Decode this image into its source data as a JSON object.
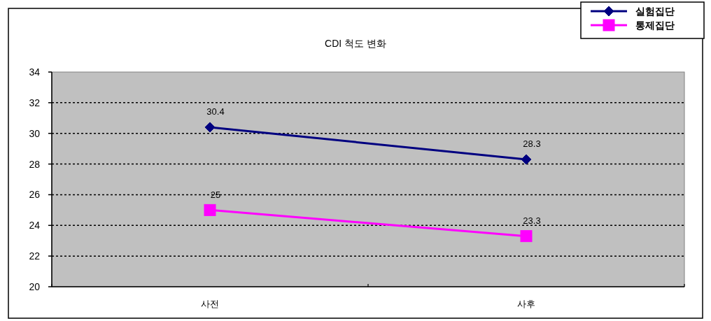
{
  "chart_data": {
    "type": "line",
    "title": "CDI 척도 변화",
    "categories": [
      "사전",
      "사후"
    ],
    "series": [
      {
        "name": "실험집단",
        "color": "#000080",
        "marker": "diamond",
        "values": [
          30.4,
          28.3
        ]
      },
      {
        "name": "통제집단",
        "color": "#ff00ff",
        "marker": "square",
        "values": [
          25,
          23.3
        ]
      }
    ],
    "ylim": [
      20,
      34
    ],
    "yticks": [
      20,
      22,
      24,
      26,
      28,
      30,
      32,
      34
    ],
    "grid": "y",
    "legend": "top right",
    "data_labels": true
  }
}
